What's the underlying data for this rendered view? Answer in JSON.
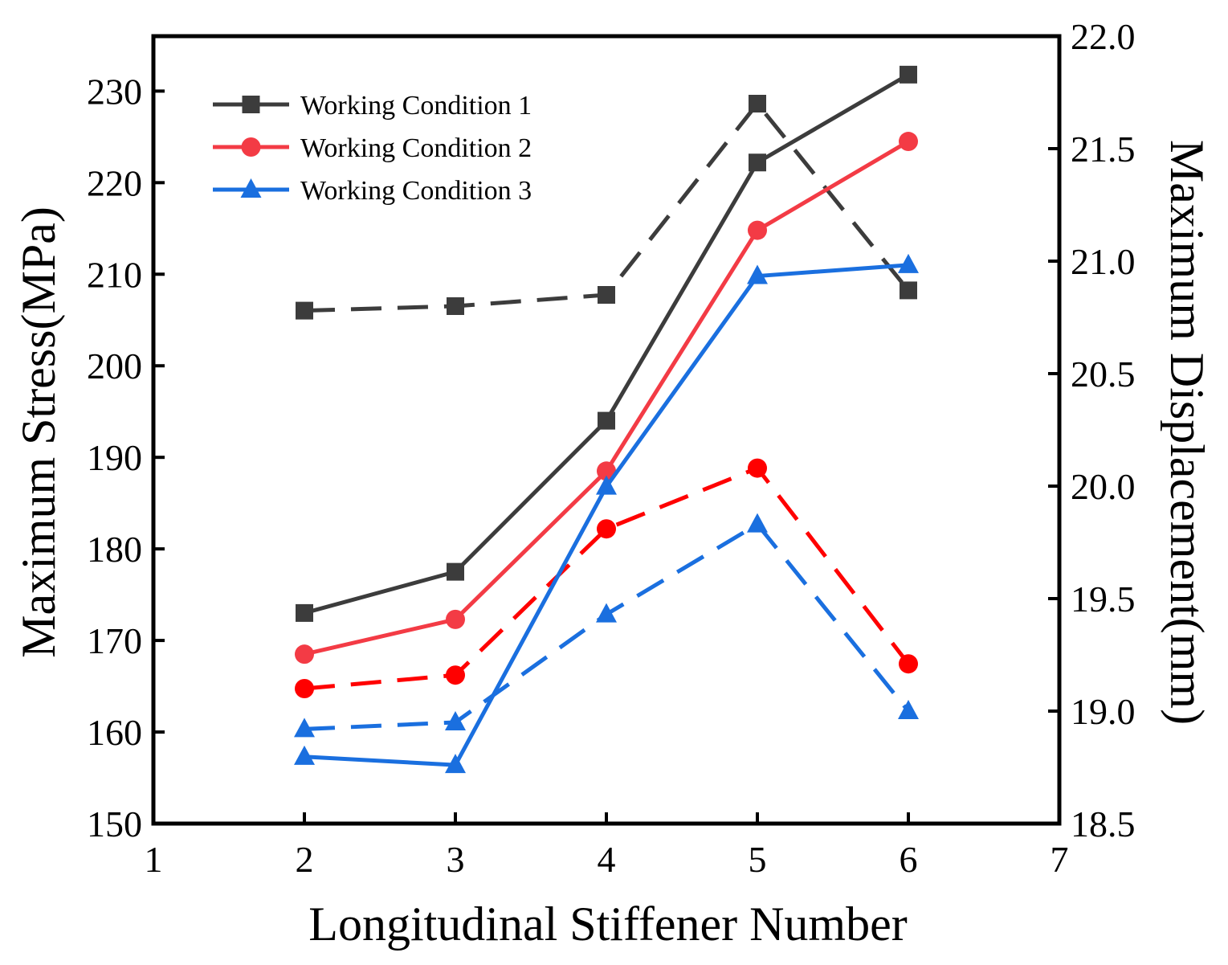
{
  "chart_data": {
    "type": "line",
    "title": "",
    "xlabel": "Longitudinal Stiffener Number",
    "ylabel_left": "Maximum Stress(MPa)",
    "ylabel_right": "Maximum Displacement(mm)",
    "xlim": [
      1,
      7
    ],
    "ylim_left": [
      150,
      236
    ],
    "ylim_right": [
      18.5,
      22.0
    ],
    "x_ticks": [
      "1",
      "2",
      "3",
      "4",
      "5",
      "6",
      "7"
    ],
    "y_left_ticks": [
      "150",
      "160",
      "170",
      "180",
      "190",
      "200",
      "210",
      "220",
      "230"
    ],
    "y_right_ticks": [
      "18.5",
      "19.0",
      "19.5",
      "20.0",
      "20.5",
      "21.0",
      "21.5",
      "22.0"
    ],
    "x": [
      2,
      3,
      4,
      5,
      6
    ],
    "legend": {
      "position": "top-left",
      "entries": [
        "Working Condition 1",
        "Working Condition 2",
        "Working Condition 3"
      ]
    },
    "series": [
      {
        "name": "Working Condition 1",
        "axis": "left",
        "style": "solid",
        "marker": "square",
        "color": "#3c3c3c",
        "values": [
          173.0,
          177.5,
          194.0,
          222.2,
          231.8
        ]
      },
      {
        "name": "Working Condition 2",
        "axis": "left",
        "style": "solid",
        "marker": "circle",
        "color": "#f33b45",
        "values": [
          168.5,
          172.3,
          188.5,
          214.8,
          224.5
        ]
      },
      {
        "name": "Working Condition 3",
        "axis": "left",
        "style": "solid",
        "marker": "triangle",
        "color": "#1a6fdf",
        "values": [
          157.3,
          156.4,
          186.8,
          209.8,
          211.0
        ]
      },
      {
        "name": "Working Condition 1",
        "axis": "right",
        "style": "dashed",
        "marker": "square",
        "color": "#3c3c3c",
        "values": [
          20.78,
          20.8,
          20.85,
          21.7,
          20.87
        ]
      },
      {
        "name": "Working Condition 2",
        "axis": "right",
        "style": "dashed",
        "marker": "circle",
        "color": "#ff0000",
        "values": [
          19.1,
          19.16,
          19.81,
          20.08,
          19.21
        ]
      },
      {
        "name": "Working Condition 3",
        "axis": "right",
        "style": "dashed",
        "marker": "triangle",
        "color": "#1a6fdf",
        "values": [
          18.92,
          18.95,
          19.43,
          19.83,
          19.0
        ]
      }
    ]
  }
}
